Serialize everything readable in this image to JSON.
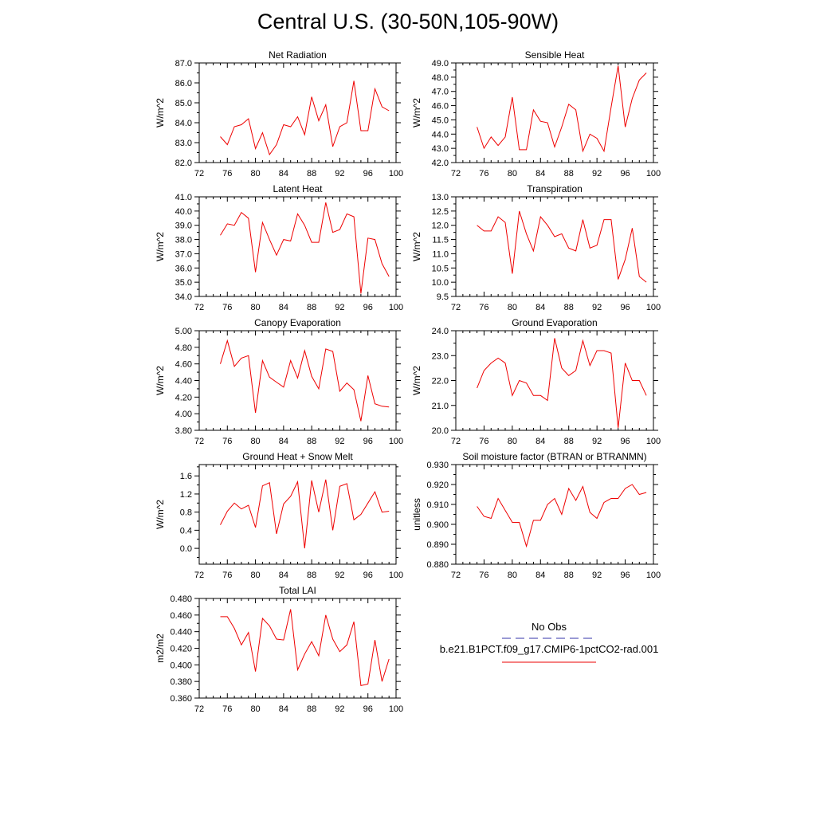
{
  "title": "Central U.S. (30-50N,105-90W)",
  "colors": {
    "model": "#ee0000",
    "obs": "#3333aa",
    "axis": "#000000"
  },
  "legend": {
    "obs_label": "No Obs",
    "model_label": "b.e21.B1PCT.f09_g17.CMIP6-1pctCO2-rad.001"
  },
  "chart_data": [
    {
      "type": "line",
      "title": "Net Radiation",
      "ylabel": "W/m^2",
      "xlim": [
        72,
        100
      ],
      "ylim": [
        82.0,
        87.0
      ],
      "xticks": [
        72,
        76,
        80,
        84,
        88,
        92,
        96,
        100
      ],
      "yticks": [
        82.0,
        83.0,
        84.0,
        85.0,
        86.0,
        87.0
      ],
      "yticklabels": [
        "82.0",
        "83.0",
        "84.0",
        "85.0",
        "86.0",
        "87.0"
      ],
      "x": [
        75,
        76,
        77,
        78,
        79,
        80,
        81,
        82,
        83,
        84,
        85,
        86,
        87,
        88,
        89,
        90,
        91,
        92,
        93,
        94,
        95,
        96,
        97,
        98,
        99
      ],
      "values": [
        83.3,
        82.9,
        83.8,
        83.9,
        84.2,
        82.7,
        83.5,
        82.4,
        82.9,
        83.9,
        83.8,
        84.3,
        83.4,
        85.3,
        84.1,
        84.9,
        82.8,
        83.8,
        84.0,
        86.1,
        83.6,
        83.6,
        85.7,
        84.8,
        84.6
      ]
    },
    {
      "type": "line",
      "title": "Sensible Heat",
      "ylabel": "W/m^2",
      "xlim": [
        72,
        100
      ],
      "ylim": [
        42.0,
        49.0
      ],
      "xticks": [
        72,
        76,
        80,
        84,
        88,
        92,
        96,
        100
      ],
      "yticks": [
        42.0,
        43.0,
        44.0,
        45.0,
        46.0,
        47.0,
        48.0,
        49.0
      ],
      "yticklabels": [
        "42.0",
        "43.0",
        "44.0",
        "45.0",
        "46.0",
        "47.0",
        "48.0",
        "49.0"
      ],
      "x": [
        75,
        76,
        77,
        78,
        79,
        80,
        81,
        82,
        83,
        84,
        85,
        86,
        87,
        88,
        89,
        90,
        91,
        92,
        93,
        94,
        95,
        96,
        97,
        98,
        99
      ],
      "values": [
        44.5,
        43.0,
        43.8,
        43.2,
        43.8,
        46.6,
        42.9,
        42.9,
        45.7,
        44.9,
        44.8,
        43.1,
        44.5,
        46.1,
        45.7,
        42.8,
        44.0,
        43.7,
        42.8,
        45.9,
        48.8,
        44.5,
        46.5,
        47.8,
        48.3
      ]
    },
    {
      "type": "line",
      "title": "Latent Heat",
      "ylabel": "W/m^2",
      "xlim": [
        72,
        100
      ],
      "ylim": [
        34.0,
        41.0
      ],
      "xticks": [
        72,
        76,
        80,
        84,
        88,
        92,
        96,
        100
      ],
      "yticks": [
        34.0,
        35.0,
        36.0,
        37.0,
        38.0,
        39.0,
        40.0,
        41.0
      ],
      "yticklabels": [
        "34.0",
        "35.0",
        "36.0",
        "37.0",
        "38.0",
        "39.0",
        "40.0",
        "41.0"
      ],
      "x": [
        75,
        76,
        77,
        78,
        79,
        80,
        81,
        82,
        83,
        84,
        85,
        86,
        87,
        88,
        89,
        90,
        91,
        92,
        93,
        94,
        95,
        96,
        97,
        98,
        99
      ],
      "values": [
        38.3,
        39.1,
        39.0,
        39.9,
        39.5,
        35.7,
        39.2,
        38.0,
        36.9,
        38.0,
        37.9,
        39.8,
        39.0,
        37.8,
        37.8,
        40.6,
        38.5,
        38.7,
        39.8,
        39.6,
        34.2,
        38.1,
        38.0,
        36.3,
        35.4
      ]
    },
    {
      "type": "line",
      "title": "Transpiration",
      "ylabel": "W/m^2",
      "xlim": [
        72,
        100
      ],
      "ylim": [
        9.5,
        13.0
      ],
      "xticks": [
        72,
        76,
        80,
        84,
        88,
        92,
        96,
        100
      ],
      "yticks": [
        9.5,
        10.0,
        10.5,
        11.0,
        11.5,
        12.0,
        12.5,
        13.0
      ],
      "yticklabels": [
        "9.5",
        "10.0",
        "10.5",
        "11.0",
        "11.5",
        "12.0",
        "12.5",
        "13.0"
      ],
      "x": [
        75,
        76,
        77,
        78,
        79,
        80,
        81,
        82,
        83,
        84,
        85,
        86,
        87,
        88,
        89,
        90,
        91,
        92,
        93,
        94,
        95,
        96,
        97,
        98,
        99
      ],
      "values": [
        12.0,
        11.8,
        11.8,
        12.3,
        12.1,
        10.3,
        12.5,
        11.7,
        11.1,
        12.3,
        12.0,
        11.6,
        11.7,
        11.2,
        11.1,
        12.2,
        11.2,
        11.3,
        12.2,
        12.2,
        10.1,
        10.8,
        11.9,
        10.2,
        10.0
      ]
    },
    {
      "type": "line",
      "title": "Canopy Evaporation",
      "ylabel": "W/m^2",
      "xlim": [
        72,
        100
      ],
      "ylim": [
        3.8,
        5.0
      ],
      "xticks": [
        72,
        76,
        80,
        84,
        88,
        92,
        96,
        100
      ],
      "yticks": [
        3.8,
        4.0,
        4.2,
        4.4,
        4.6,
        4.8,
        5.0
      ],
      "yticklabels": [
        "3.80",
        "4.00",
        "4.20",
        "4.40",
        "4.60",
        "4.80",
        "5.00"
      ],
      "x": [
        75,
        76,
        77,
        78,
        79,
        80,
        81,
        82,
        83,
        84,
        85,
        86,
        87,
        88,
        89,
        90,
        91,
        92,
        93,
        94,
        95,
        96,
        97,
        98,
        99
      ],
      "values": [
        4.6,
        4.88,
        4.57,
        4.67,
        4.7,
        4.01,
        4.64,
        4.44,
        4.38,
        4.32,
        4.64,
        4.43,
        4.76,
        4.45,
        4.3,
        4.78,
        4.75,
        4.27,
        4.37,
        4.29,
        3.91,
        4.46,
        4.12,
        4.09,
        4.08
      ]
    },
    {
      "type": "line",
      "title": "Ground Evaporation",
      "ylabel": "W/m^2",
      "xlim": [
        72,
        100
      ],
      "ylim": [
        20.0,
        24.0
      ],
      "xticks": [
        72,
        76,
        80,
        84,
        88,
        92,
        96,
        100
      ],
      "yticks": [
        20.0,
        21.0,
        22.0,
        23.0,
        24.0
      ],
      "yticklabels": [
        "20.0",
        "21.0",
        "22.0",
        "23.0",
        "24.0"
      ],
      "x": [
        75,
        76,
        77,
        78,
        79,
        80,
        81,
        82,
        83,
        84,
        85,
        86,
        87,
        88,
        89,
        90,
        91,
        92,
        93,
        94,
        95,
        96,
        97,
        98,
        99
      ],
      "values": [
        21.7,
        22.4,
        22.7,
        22.9,
        22.7,
        21.4,
        22.0,
        21.9,
        21.4,
        21.4,
        21.2,
        23.7,
        22.5,
        22.2,
        22.4,
        23.6,
        22.6,
        23.2,
        23.2,
        23.1,
        20.1,
        22.7,
        22.0,
        22.0,
        21.4
      ]
    },
    {
      "type": "line",
      "title": "Ground Heat + Snow Melt",
      "ylabel": "W/m^2",
      "xlim": [
        72,
        100
      ],
      "ylim": [
        -0.35,
        1.85
      ],
      "xticks": [
        72,
        76,
        80,
        84,
        88,
        92,
        96,
        100
      ],
      "yticks": [
        0.0,
        0.4,
        0.8,
        1.2,
        1.6
      ],
      "yticklabels": [
        "0.0",
        "0.4",
        "0.8",
        "1.2",
        "1.6"
      ],
      "x": [
        75,
        76,
        77,
        78,
        79,
        80,
        81,
        82,
        83,
        84,
        85,
        86,
        87,
        88,
        89,
        90,
        91,
        92,
        93,
        94,
        95,
        96,
        97,
        98,
        99
      ],
      "values": [
        0.52,
        0.82,
        1.0,
        0.87,
        0.95,
        0.46,
        1.38,
        1.45,
        0.32,
        0.98,
        1.15,
        1.47,
        0.0,
        1.5,
        0.8,
        1.52,
        0.4,
        1.37,
        1.43,
        0.63,
        0.75,
        1.0,
        1.25,
        0.8,
        0.82
      ]
    },
    {
      "type": "line",
      "title": "Soil moisture factor (BTRAN or BTRANMN)",
      "ylabel": "unitless",
      "xlim": [
        72,
        100
      ],
      "ylim": [
        0.88,
        0.93
      ],
      "xticks": [
        72,
        76,
        80,
        84,
        88,
        92,
        96,
        100
      ],
      "yticks": [
        0.88,
        0.89,
        0.9,
        0.91,
        0.92,
        0.93
      ],
      "yticklabels": [
        "0.880",
        "0.890",
        "0.900",
        "0.910",
        "0.920",
        "0.930"
      ],
      "x": [
        75,
        76,
        77,
        78,
        79,
        80,
        81,
        82,
        83,
        84,
        85,
        86,
        87,
        88,
        89,
        90,
        91,
        92,
        93,
        94,
        95,
        96,
        97,
        98,
        99
      ],
      "values": [
        0.909,
        0.904,
        0.903,
        0.913,
        0.907,
        0.901,
        0.901,
        0.889,
        0.902,
        0.902,
        0.91,
        0.913,
        0.905,
        0.918,
        0.912,
        0.919,
        0.906,
        0.903,
        0.911,
        0.913,
        0.913,
        0.918,
        0.92,
        0.915,
        0.916
      ]
    },
    {
      "type": "line",
      "title": "Total LAI",
      "ylabel": "m2/m2",
      "xlim": [
        72,
        100
      ],
      "ylim": [
        0.36,
        0.48
      ],
      "xticks": [
        72,
        76,
        80,
        84,
        88,
        92,
        96,
        100
      ],
      "yticks": [
        0.36,
        0.38,
        0.4,
        0.42,
        0.44,
        0.46,
        0.48
      ],
      "yticklabels": [
        "0.360",
        "0.380",
        "0.400",
        "0.420",
        "0.440",
        "0.460",
        "0.480"
      ],
      "x": [
        75,
        76,
        77,
        78,
        79,
        80,
        81,
        82,
        83,
        84,
        85,
        86,
        87,
        88,
        89,
        90,
        91,
        92,
        93,
        94,
        95,
        96,
        97,
        98,
        99
      ],
      "values": [
        0.458,
        0.458,
        0.444,
        0.424,
        0.439,
        0.392,
        0.456,
        0.447,
        0.431,
        0.43,
        0.467,
        0.394,
        0.413,
        0.428,
        0.411,
        0.46,
        0.431,
        0.416,
        0.424,
        0.452,
        0.375,
        0.377,
        0.43,
        0.38,
        0.407
      ]
    }
  ]
}
